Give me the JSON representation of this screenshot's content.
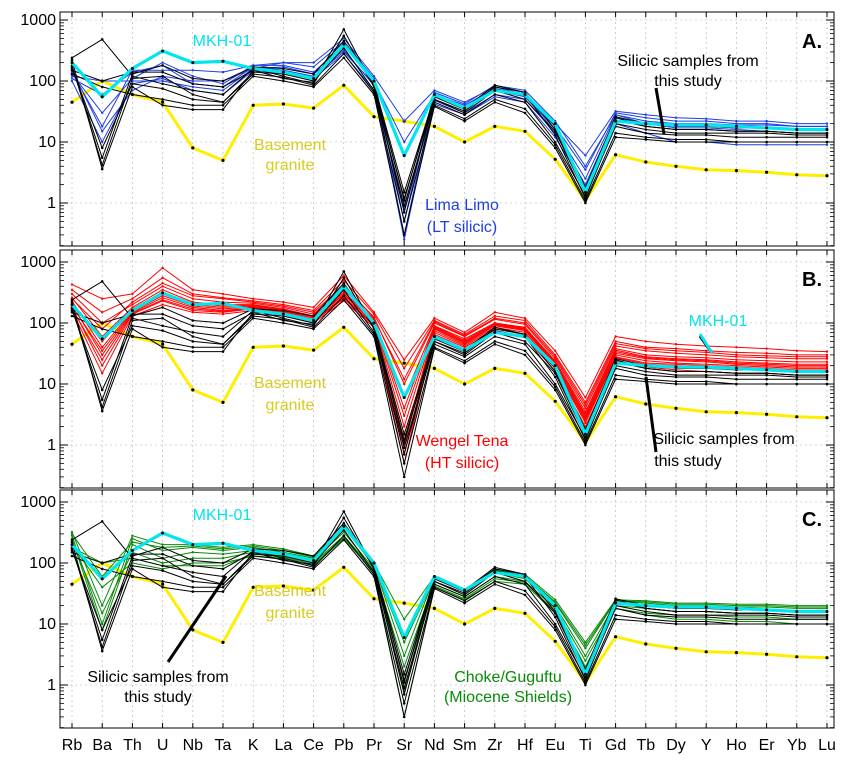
{
  "chart_data": {
    "type": "line",
    "yscale": "log",
    "ylim": [
      0.2,
      1000
    ],
    "yticks": [
      1,
      10,
      100,
      1000
    ],
    "ytick_labels": [
      "1",
      "10",
      "100",
      "1000"
    ],
    "categories": [
      "Rb",
      "Ba",
      "Th",
      "U",
      "Nb",
      "Ta",
      "K",
      "La",
      "Ce",
      "Pb",
      "Pr",
      "Sr",
      "Nd",
      "Sm",
      "Zr",
      "Hf",
      "Eu",
      "Ti",
      "Gd",
      "Tb",
      "Dy",
      "Y",
      "Ho",
      "Er",
      "Yb",
      "Lu"
    ],
    "colors": {
      "this_study": "#000000",
      "mkh01": "#00e5ee",
      "basement": "#ffee00",
      "basement_label": "#d8cc1e",
      "lima_limo": "#1f3fe0",
      "wengel_tena": "#ff0000",
      "choke": "#0a8a0a"
    },
    "reference_series": {
      "mkh01": [
        200,
        55,
        160,
        310,
        200,
        210,
        160,
        140,
        110,
        400,
        100,
        6,
        60,
        36,
        70,
        60,
        20,
        1.5,
        22,
        20,
        19,
        19,
        18,
        17,
        16,
        16
      ],
      "basement": [
        45,
        100,
        60,
        45,
        8,
        5,
        40,
        42,
        36,
        85,
        26,
        22,
        18,
        10,
        18,
        15,
        5.2,
        1.1,
        6.2,
        4.7,
        4,
        3.5,
        3.4,
        3.2,
        2.9,
        2.8
      ]
    },
    "this_study_series": [
      [
        240,
        480,
        120,
        90,
        70,
        60,
        160,
        120,
        90,
        550,
        80,
        1.2,
        50,
        30,
        70,
        50,
        15,
        1.4,
        25,
        18,
        16,
        16,
        15,
        15,
        14,
        14
      ],
      [
        220,
        3.6,
        80,
        40,
        34,
        34,
        150,
        110,
        95,
        700,
        80,
        0.7,
        50,
        32,
        75,
        60,
        13,
        1.2,
        20,
        16,
        14,
        14,
        14,
        14,
        13,
        13
      ],
      [
        180,
        4.2,
        110,
        120,
        60,
        45,
        140,
        130,
        100,
        350,
        70,
        0.9,
        45,
        28,
        60,
        45,
        10,
        1.3,
        18,
        14,
        13,
        13,
        12,
        12,
        12,
        12
      ],
      [
        170,
        5.5,
        130,
        180,
        110,
        100,
        170,
        160,
        130,
        450,
        90,
        1.5,
        55,
        34,
        80,
        65,
        16,
        1.6,
        23,
        18,
        16,
        16,
        15,
        15,
        14,
        14
      ],
      [
        160,
        8,
        90,
        75,
        50,
        45,
        130,
        115,
        85,
        280,
        65,
        0.5,
        40,
        24,
        50,
        35,
        9,
        1.1,
        14,
        12,
        11,
        11,
        10,
        10,
        10,
        10
      ],
      [
        150,
        100,
        140,
        140,
        90,
        80,
        150,
        140,
        110,
        420,
        90,
        1.1,
        60,
        36,
        85,
        65,
        18,
        1.8,
        26,
        20,
        18,
        18,
        17,
        17,
        16,
        16
      ],
      [
        130,
        80,
        60,
        50,
        40,
        40,
        120,
        100,
        80,
        240,
        60,
        0.3,
        38,
        22,
        45,
        30,
        8,
        1.0,
        12,
        11,
        10,
        10,
        10,
        10,
        10,
        10
      ]
    ],
    "panels": [
      {
        "letter": "A.",
        "comparison_name": "Lima Limo",
        "comparison_tag": "(LT silicic)",
        "comparison_color": "lima_limo",
        "labels": [
          {
            "text": "MKH-01",
            "color": "mkh01"
          },
          {
            "text": "Basement",
            "color": "basement_label"
          },
          {
            "text": "granite",
            "color": "basement_label"
          },
          {
            "text": "Silicic samples from",
            "color": "this_study"
          },
          {
            "text": "this study",
            "color": "this_study"
          },
          {
            "text": "Lima Limo",
            "color": "lima_limo"
          },
          {
            "text": "(LT silicic)",
            "color": "lima_limo"
          }
        ],
        "comparison_series": [
          [
            150,
            15,
            70,
            120,
            100,
            100,
            160,
            200,
            200,
            500,
            120,
            22,
            70,
            45,
            80,
            60,
            20,
            6,
            32,
            28,
            25,
            24,
            22,
            22,
            20,
            20
          ],
          [
            130,
            30,
            110,
            200,
            120,
            90,
            180,
            180,
            140,
            380,
            100,
            10,
            60,
            40,
            75,
            55,
            18,
            3.5,
            30,
            25,
            22,
            22,
            20,
            20,
            18,
            18
          ],
          [
            110,
            60,
            140,
            180,
            90,
            80,
            170,
            150,
            120,
            300,
            90,
            0.3,
            55,
            35,
            70,
            55,
            16,
            2.5,
            28,
            22,
            20,
            20,
            19,
            19,
            18,
            18
          ],
          [
            120,
            100,
            100,
            100,
            80,
            70,
            160,
            170,
            130,
            320,
            85,
            0.25,
            48,
            30,
            60,
            50,
            14,
            2.0,
            25,
            20,
            18,
            18,
            17,
            17,
            16,
            16
          ],
          [
            140,
            18,
            150,
            150,
            150,
            140,
            180,
            200,
            170,
            450,
            110,
            0.5,
            65,
            42,
            85,
            70,
            22,
            4.0,
            28,
            20,
            17,
            17,
            16,
            15,
            14,
            14
          ],
          [
            100,
            10,
            90,
            110,
            70,
            60,
            150,
            130,
            110,
            280,
            70,
            0.8,
            42,
            28,
            55,
            45,
            12,
            1.8,
            20,
            14,
            10,
            10,
            9,
            9,
            9,
            9
          ]
        ]
      },
      {
        "letter": "B.",
        "comparison_name": "Wengel Tena",
        "comparison_tag": "(HT silicic)",
        "comparison_color": "wengel_tena",
        "labels": [
          {
            "text": "MKH-01",
            "color": "mkh01"
          },
          {
            "text": "Basement",
            "color": "basement_label"
          },
          {
            "text": "granite",
            "color": "basement_label"
          },
          {
            "text": "Silicic samples from",
            "color": "this_study"
          },
          {
            "text": "this study",
            "color": "this_study"
          },
          {
            "text": "Wengel Tena",
            "color": "wengel_tena"
          },
          {
            "text": "(HT silicic)",
            "color": "wengel_tena"
          }
        ],
        "comparison_series": [
          [
            430,
            250,
            300,
            800,
            350,
            300,
            250,
            220,
            180,
            600,
            150,
            25,
            120,
            70,
            150,
            120,
            35,
            6,
            60,
            50,
            45,
            42,
            40,
            38,
            35,
            34
          ],
          [
            350,
            150,
            250,
            550,
            300,
            260,
            230,
            200,
            160,
            500,
            140,
            18,
            110,
            65,
            130,
            110,
            30,
            5,
            50,
            40,
            38,
            35,
            33,
            32,
            30,
            30
          ],
          [
            300,
            100,
            200,
            400,
            250,
            220,
            210,
            180,
            140,
            400,
            125,
            10,
            100,
            60,
            115,
            95,
            26,
            4,
            42,
            35,
            32,
            30,
            28,
            27,
            26,
            26
          ],
          [
            260,
            60,
            180,
            350,
            220,
            200,
            200,
            170,
            130,
            350,
            115,
            6,
            90,
            55,
            100,
            85,
            24,
            3.5,
            38,
            30,
            28,
            27,
            25,
            24,
            23,
            23
          ],
          [
            230,
            40,
            160,
            300,
            200,
            180,
            190,
            160,
            120,
            300,
            105,
            3,
            85,
            50,
            95,
            80,
            22,
            3,
            34,
            27,
            25,
            24,
            22,
            21,
            20,
            20
          ],
          [
            200,
            30,
            150,
            260,
            180,
            160,
            180,
            150,
            110,
            270,
            95,
            1.2,
            80,
            46,
            90,
            75,
            20,
            2.6,
            30,
            24,
            22,
            21,
            20,
            19,
            18,
            18
          ],
          [
            180,
            20,
            140,
            230,
            160,
            150,
            170,
            140,
            105,
            250,
            90,
            0.7,
            70,
            42,
            80,
            65,
            18,
            2.3,
            27,
            21,
            20,
            19,
            18,
            17,
            16,
            16
          ],
          [
            160,
            15,
            130,
            200,
            150,
            140,
            160,
            130,
            100,
            230,
            85,
            0.5,
            65,
            40,
            75,
            60,
            16,
            2.0,
            24,
            19,
            17,
            16,
            15,
            15,
            14,
            14
          ],
          [
            250,
            80,
            220,
            450,
            280,
            250,
            220,
            190,
            150,
            420,
            120,
            12,
            105,
            62,
            120,
            100,
            28,
            4.5,
            46,
            38,
            35,
            33,
            30,
            29,
            28,
            28
          ],
          [
            210,
            50,
            170,
            320,
            210,
            190,
            195,
            165,
            125,
            320,
            110,
            4,
            88,
            52,
            98,
            82,
            23,
            3.2,
            36,
            28,
            26,
            25,
            23,
            22,
            21,
            21
          ],
          [
            190,
            35,
            155,
            280,
            190,
            170,
            185,
            155,
            115,
            290,
            100,
            2,
            82,
            48,
            92,
            78,
            21,
            2.8,
            32,
            26,
            24,
            23,
            21,
            20,
            19,
            19
          ],
          [
            170,
            25,
            145,
            240,
            170,
            155,
            175,
            145,
            108,
            260,
            92,
            1,
            75,
            44,
            85,
            70,
            19,
            2.5,
            28,
            22,
            21,
            20,
            19,
            18,
            17,
            17
          ]
        ]
      },
      {
        "letter": "C.",
        "comparison_name": "Choke/Guguftu",
        "comparison_tag": "(Miocene Shields)",
        "comparison_color": "choke",
        "labels": [
          {
            "text": "MKH-01",
            "color": "mkh01"
          },
          {
            "text": "Basement",
            "color": "basement_label"
          },
          {
            "text": "granite",
            "color": "basement_label"
          },
          {
            "text": "Silicic samples from",
            "color": "this_study"
          },
          {
            "text": "this study",
            "color": "this_study"
          },
          {
            "text": "Choke/Guguftu",
            "color": "choke"
          },
          {
            "text": "(Miocene Shields)",
            "color": "choke"
          }
        ],
        "comparison_series": [
          [
            320,
            20,
            280,
            200,
            200,
            180,
            200,
            170,
            130,
            450,
            100,
            12,
            60,
            36,
            80,
            65,
            25,
            5,
            25,
            24,
            22,
            22,
            21,
            21,
            20,
            20
          ],
          [
            280,
            10,
            250,
            160,
            180,
            160,
            180,
            150,
            120,
            380,
            90,
            5,
            55,
            34,
            75,
            60,
            22,
            4,
            24,
            22,
            20,
            20,
            19,
            19,
            18,
            18
          ],
          [
            250,
            8,
            200,
            120,
            150,
            140,
            160,
            140,
            110,
            320,
            80,
            2,
            50,
            30,
            70,
            55,
            20,
            3,
            22,
            20,
            18,
            18,
            17,
            17,
            16,
            16
          ],
          [
            220,
            15,
            150,
            100,
            120,
            120,
            150,
            130,
            100,
            280,
            75,
            0.8,
            45,
            28,
            60,
            50,
            18,
            2.5,
            20,
            18,
            16,
            16,
            15,
            15,
            14,
            14
          ],
          [
            200,
            40,
            100,
            80,
            100,
            100,
            130,
            120,
            90,
            250,
            70,
            0.3,
            40,
            25,
            50,
            45,
            15,
            1.8,
            18,
            15,
            14,
            14,
            13,
            13,
            12,
            12
          ],
          [
            180,
            100,
            120,
            90,
            90,
            90,
            140,
            125,
            95,
            260,
            72,
            1.2,
            42,
            26,
            55,
            48,
            16,
            2.0,
            18,
            14,
            12,
            12,
            11,
            11,
            10,
            10
          ],
          [
            300,
            60,
            220,
            180,
            190,
            170,
            190,
            160,
            125,
            400,
            95,
            3,
            58,
            35,
            78,
            62,
            23,
            4.5,
            24,
            23,
            21,
            21,
            20,
            20,
            19,
            19
          ]
        ]
      }
    ]
  }
}
